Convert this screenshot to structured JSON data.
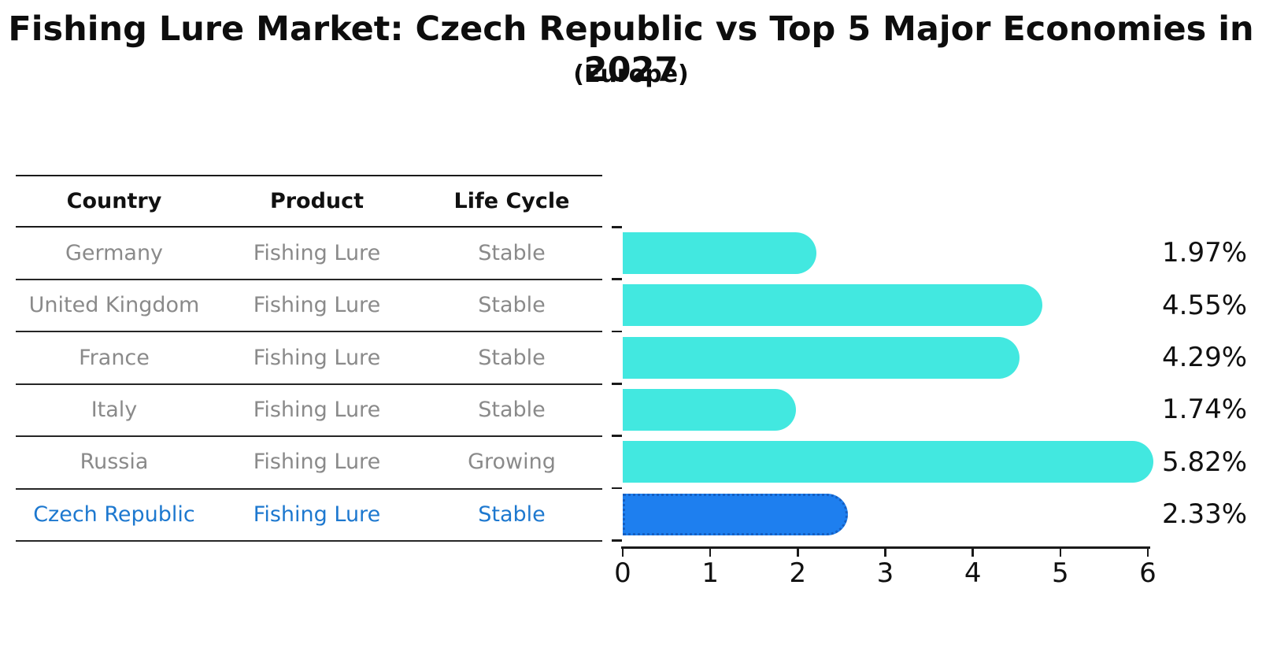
{
  "title": "Fishing Lure Market: Czech Republic vs Top 5 Major Economies in 2027",
  "subtitle": "(Europe)",
  "table": {
    "headers": {
      "country": "Country",
      "product": "Product",
      "life_cycle": "Life Cycle"
    },
    "rows": [
      {
        "country": "Germany",
        "product": "Fishing Lure",
        "life_cycle": "Stable"
      },
      {
        "country": "United Kingdom",
        "product": "Fishing Lure",
        "life_cycle": "Stable"
      },
      {
        "country": "France",
        "product": "Fishing Lure",
        "life_cycle": "Stable"
      },
      {
        "country": "Italy",
        "product": "Fishing Lure",
        "life_cycle": "Stable"
      },
      {
        "country": "Russia",
        "product": "Fishing Lure",
        "life_cycle": "Growing"
      },
      {
        "country": "Czech Republic",
        "product": "Fishing Lure",
        "life_cycle": "Stable"
      }
    ]
  },
  "chart_data": {
    "type": "bar",
    "orientation": "horizontal",
    "title": "Fishing Lure Market: Czech Republic vs Top 5 Major Economies in 2027 (Europe)",
    "categories": [
      "Germany",
      "United Kingdom",
      "France",
      "Italy",
      "Russia",
      "Czech Republic"
    ],
    "values": [
      1.97,
      4.55,
      4.29,
      1.74,
      5.82,
      2.33
    ],
    "value_labels": [
      "1.97%",
      "4.55%",
      "4.29%",
      "1.74%",
      "5.82%",
      "2.33%"
    ],
    "xlim": [
      0,
      6
    ],
    "x_ticks": [
      "0",
      "1",
      "2",
      "3",
      "4",
      "5",
      "6"
    ],
    "grid": false,
    "legend": false,
    "highlight_index": 5,
    "colors": {
      "bar": "#42e8e0",
      "highlight_bar": "#1e7fef",
      "highlight_border": "#155fc2",
      "highlight_text": "#1d78cf",
      "row_text": "#8a8a8a",
      "header_text": "#111111",
      "axis": "#1a1a1a"
    }
  }
}
